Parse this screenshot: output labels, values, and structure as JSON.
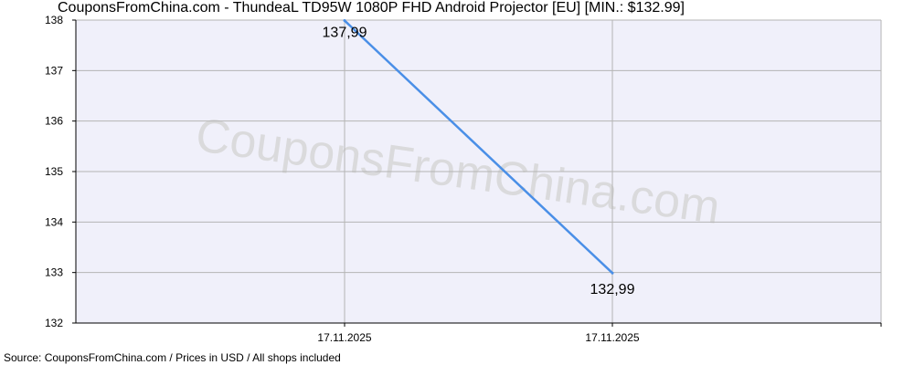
{
  "title": "CouponsFromChina.com - ThundeaL TD95W 1080P FHD Android Projector [EU] [MIN.: $132.99]",
  "source": "Source: CouponsFromChina.com / Prices in USD / All shops included",
  "watermark": "CouponsFromChina.com",
  "colors": {
    "line": "#4a8fe7",
    "plot_background": "#f0f0fa",
    "grid": "#b4b4b4",
    "axis": "#000000"
  },
  "chart_data": {
    "type": "line",
    "x": [
      "17.11.2025",
      "17.11.2025"
    ],
    "values": [
      137.99,
      132.99
    ],
    "data_labels": [
      "137,99",
      "132,99"
    ],
    "ylim": [
      132,
      138
    ],
    "yticks": [
      "132",
      "133",
      "134",
      "135",
      "136",
      "137",
      "138"
    ],
    "grid": true
  }
}
